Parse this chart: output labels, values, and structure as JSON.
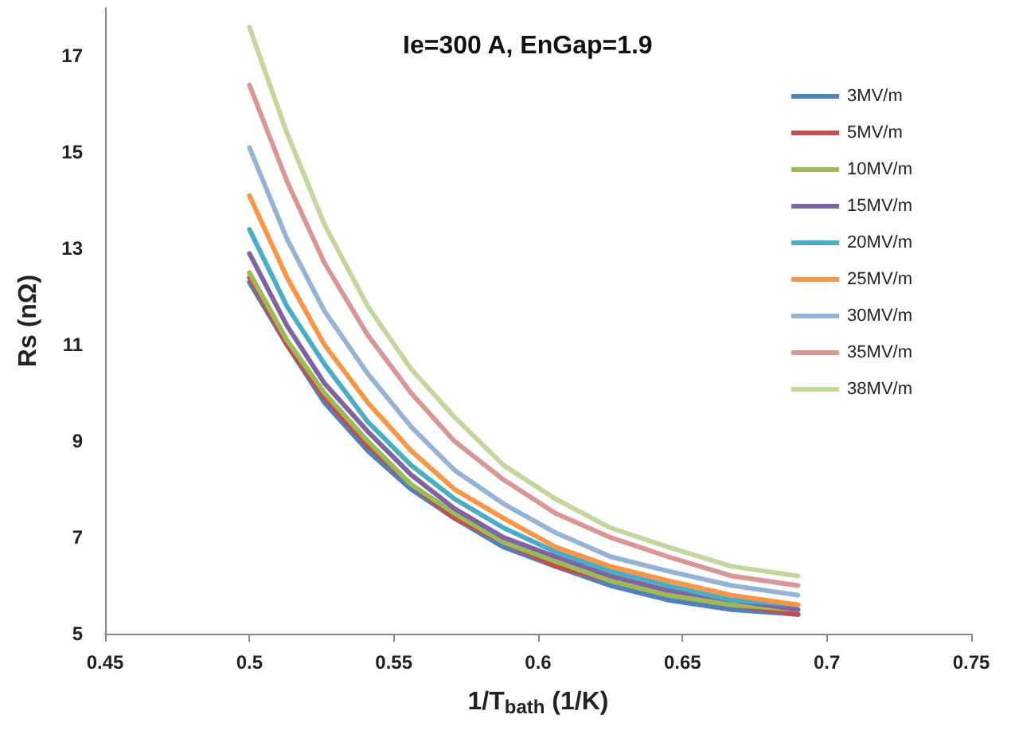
{
  "chart_data": {
    "type": "line",
    "title": "Ie=300 A, EnGap=1.9",
    "xlabel": "1/T$_{bath}$ (1/K)",
    "ylabel": "Rs (nΩ)",
    "x": [
      0.5,
      0.513,
      0.526,
      0.541,
      0.556,
      0.571,
      0.588,
      0.606,
      0.625,
      0.645,
      0.667,
      0.69
    ],
    "xlim": [
      0.45,
      0.75
    ],
    "xticks": [
      0.45,
      0.5,
      0.55,
      0.6,
      0.65,
      0.7,
      0.75
    ],
    "ylim": [
      5,
      18
    ],
    "yticks": [
      5,
      7,
      9,
      11,
      13,
      15,
      17
    ],
    "grid": false,
    "legend": "top right",
    "marker": "none",
    "line_style": "solid",
    "series": [
      {
        "name": "3MV/m",
        "color": "#4f81bd",
        "values": [
          12.3,
          11.0,
          9.8,
          8.8,
          8.0,
          7.4,
          6.8,
          6.4,
          6.0,
          5.7,
          5.5,
          5.4
        ]
      },
      {
        "name": "5MV/m",
        "color": "#c0504d",
        "values": [
          12.4,
          11.0,
          9.9,
          8.9,
          8.1,
          7.4,
          6.9,
          6.4,
          6.1,
          5.8,
          5.6,
          5.4
        ]
      },
      {
        "name": "10MV/m",
        "color": "#9bbb59",
        "values": [
          12.5,
          11.1,
          10.0,
          9.0,
          8.1,
          7.5,
          6.9,
          6.5,
          6.1,
          5.8,
          5.6,
          5.5
        ]
      },
      {
        "name": "15MV/m",
        "color": "#8064a2",
        "values": [
          12.9,
          11.4,
          10.2,
          9.2,
          8.3,
          7.6,
          7.0,
          6.6,
          6.2,
          5.9,
          5.7,
          5.5
        ]
      },
      {
        "name": "20MV/m",
        "color": "#4bacc6",
        "values": [
          13.4,
          11.8,
          10.6,
          9.4,
          8.5,
          7.8,
          7.2,
          6.7,
          6.3,
          6.0,
          5.7,
          5.6
        ]
      },
      {
        "name": "25MV/m",
        "color": "#f79646",
        "values": [
          14.1,
          12.4,
          11.0,
          9.8,
          8.8,
          8.0,
          7.4,
          6.8,
          6.4,
          6.1,
          5.8,
          5.6
        ]
      },
      {
        "name": "30MV/m",
        "color": "#95b3d7",
        "values": [
          15.1,
          13.2,
          11.7,
          10.4,
          9.3,
          8.4,
          7.7,
          7.1,
          6.6,
          6.3,
          6.0,
          5.8
        ]
      },
      {
        "name": "35MV/m",
        "color": "#d99694",
        "values": [
          16.4,
          14.4,
          12.7,
          11.2,
          10.0,
          9.0,
          8.2,
          7.5,
          7.0,
          6.6,
          6.2,
          6.0
        ]
      },
      {
        "name": "38MV/m",
        "color": "#c3d69b",
        "values": [
          17.6,
          15.4,
          13.5,
          11.8,
          10.5,
          9.5,
          8.5,
          7.8,
          7.2,
          6.8,
          6.4,
          6.2
        ]
      }
    ]
  }
}
